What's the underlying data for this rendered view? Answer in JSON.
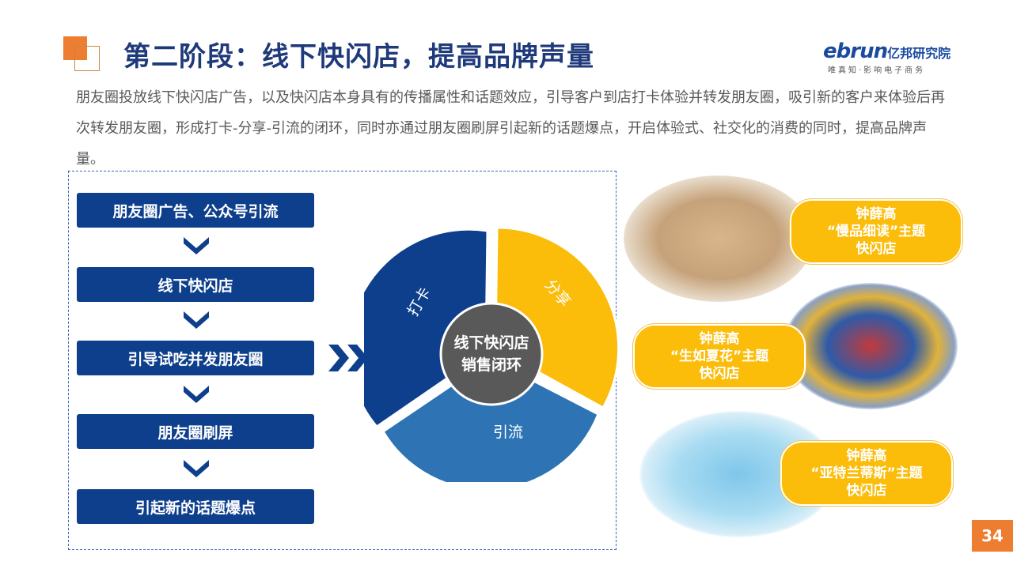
{
  "title": "第二阶段：线下快闪店，提高品牌声量",
  "logo": {
    "brand": "ebrun",
    "brand_cn": "亿邦研究院",
    "tagline": "唯真知·影响电子商务"
  },
  "description": "朋友圈投放线下快闪店广告，以及快闪店本身具有的传播属性和话题效应，引导客户到店打卡体验并转发朋友圈，吸引新的客户来体验后再次转发朋友圈，形成打卡-分享-引流的闭环，同时亦通过朋友圈刷屏引起新的话题爆点，开启体验式、社交化的消费的同时，提高品牌声量。",
  "steps": [
    "朋友圈广告、公众号引流",
    "线下快闪店",
    "引导试吃并发朋友圈",
    "朋友圈刷屏",
    "引起新的话题爆点"
  ],
  "cycle": {
    "center_line1": "线下快闪店",
    "center_line2": "销售闭环",
    "segments": [
      "打卡",
      "分享",
      "引流"
    ]
  },
  "colors": {
    "navy": "#0e3f8c",
    "yellow": "#fbbc0a",
    "blue": "#2e74b5",
    "gray": "#595959",
    "orange": "#ed7d31"
  },
  "callouts": [
    {
      "line1": "钟薛高",
      "line2": "“慢品细读”主题",
      "line3": "快闪店"
    },
    {
      "line1": "钟薛高",
      "line2": "“生如夏花”主题",
      "line3": "快闪店"
    },
    {
      "line1": "钟薛高",
      "line2": "“亚特兰蒂斯”主题",
      "line3": "快闪店"
    }
  ],
  "page_number": "34"
}
